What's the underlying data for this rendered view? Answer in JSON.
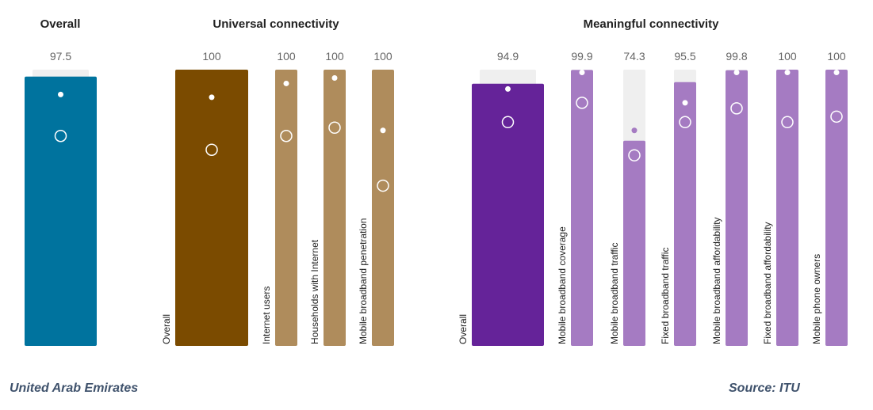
{
  "chart_data": {
    "type": "bar",
    "ylim": [
      0,
      100
    ],
    "groups": [
      {
        "title": "Overall",
        "bars": [
          {
            "label": "",
            "value": 97.5,
            "color": "#00739e",
            "dot": 91,
            "circle": 76
          }
        ]
      },
      {
        "title": "Universal connectivity",
        "bars": [
          {
            "label": "Overall",
            "value": 100,
            "color": "#7b4b00",
            "dot": 90,
            "circle": 71
          },
          {
            "label": "Internet users",
            "value": 100,
            "color": "#af8c5c",
            "dot": 95,
            "circle": 76
          },
          {
            "label": "Households with Internet",
            "value": 100,
            "color": "#af8c5c",
            "dot": 97,
            "circle": 79
          },
          {
            "label": "Mobile broadband penetration",
            "value": 100,
            "color": "#af8c5c",
            "dot": 78,
            "circle": 58
          }
        ]
      },
      {
        "title": "Meaningful connectivity",
        "bars": [
          {
            "label": "Overall",
            "value": 94.9,
            "color": "#652399",
            "dot": 93,
            "circle": 81
          },
          {
            "label": "Mobile broadband coverage",
            "value": 99.9,
            "color": "#a57bc2",
            "dot": 99,
            "circle": 88
          },
          {
            "label": "Mobile broadband traffic",
            "value": 74.3,
            "color": "#a57bc2",
            "dot": 78,
            "circle": 69
          },
          {
            "label": "Fixed broadband traffic",
            "value": 95.5,
            "color": "#a57bc2",
            "dot": 88,
            "circle": 81
          },
          {
            "label": "Mobile broadband affordability",
            "value": 99.8,
            "color": "#a57bc2",
            "dot": 99,
            "circle": 86
          },
          {
            "label": "Fixed broadband affordability",
            "value": 100,
            "color": "#a57bc2",
            "dot": 99,
            "circle": 81
          },
          {
            "label": "Mobile phone owners",
            "value": 100,
            "color": "#a57bc2",
            "dot": 99,
            "circle": 83
          }
        ]
      }
    ],
    "track_color": "#efefef"
  },
  "footer": {
    "country": "United Arab Emirates",
    "source": "Source: ITU"
  }
}
